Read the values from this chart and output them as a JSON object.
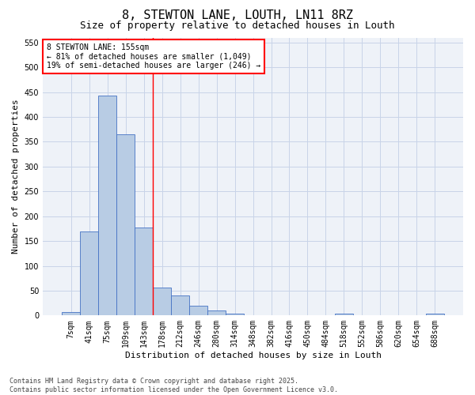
{
  "title": "8, STEWTON LANE, LOUTH, LN11 8RZ",
  "subtitle": "Size of property relative to detached houses in Louth",
  "xlabel": "Distribution of detached houses by size in Louth",
  "ylabel": "Number of detached properties",
  "bin_labels": [
    "7sqm",
    "41sqm",
    "75sqm",
    "109sqm",
    "143sqm",
    "178sqm",
    "212sqm",
    "246sqm",
    "280sqm",
    "314sqm",
    "348sqm",
    "382sqm",
    "416sqm",
    "450sqm",
    "484sqm",
    "518sqm",
    "552sqm",
    "586sqm",
    "620sqm",
    "654sqm",
    "688sqm"
  ],
  "bar_heights": [
    7,
    170,
    443,
    365,
    177,
    57,
    40,
    20,
    10,
    4,
    0,
    0,
    0,
    0,
    0,
    3,
    0,
    0,
    0,
    0,
    3
  ],
  "bar_color": "#b8cce4",
  "bar_edgecolor": "#4472c4",
  "grid_color": "#c8d4e8",
  "background_color": "#eef2f8",
  "annotation_text": "8 STEWTON LANE: 155sqm\n← 81% of detached houses are smaller (1,049)\n19% of semi-detached houses are larger (246) →",
  "annotation_box_edgecolor": "red",
  "red_line_x": 4.5,
  "ylim": [
    0,
    560
  ],
  "yticks": [
    0,
    50,
    100,
    150,
    200,
    250,
    300,
    350,
    400,
    450,
    500,
    550
  ],
  "footer_text": "Contains HM Land Registry data © Crown copyright and database right 2025.\nContains public sector information licensed under the Open Government Licence v3.0.",
  "title_fontsize": 11,
  "subtitle_fontsize": 9,
  "axis_label_fontsize": 8,
  "tick_fontsize": 7,
  "footer_fontsize": 6
}
